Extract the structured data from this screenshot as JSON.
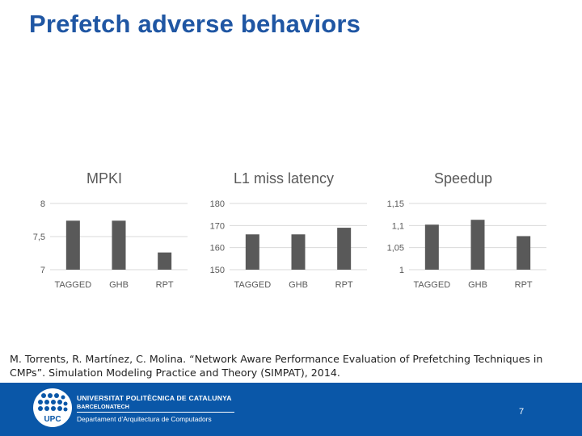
{
  "slide": {
    "title": "Prefetch adverse behaviors",
    "citation": "M. Torrents, R. Martínez, C. Molina. “Network Aware Performance Evaluation of Prefetching Techniques in CMPs”. Simulation Modeling Practice and Theory (SIMPAT), 2014.",
    "page_number": "7"
  },
  "footer": {
    "university": "UNIVERSITAT POLITÈCNICA DE CATALUNYA",
    "campus": "BARCELONATECH",
    "department": "Departament d’Arquitectura de Computadors",
    "logo_text": "UPC",
    "background_color": "#0a57a8"
  },
  "chart_data": [
    {
      "type": "bar",
      "title": "MPKI",
      "categories": [
        "TAGGED",
        "GHB",
        "RPT"
      ],
      "values": [
        7.74,
        7.74,
        7.26
      ],
      "ylim": [
        7,
        8
      ],
      "yticks": [
        7,
        7.5,
        8
      ],
      "ytick_labels": [
        "7",
        "7,5",
        "8"
      ],
      "grid": true,
      "bar_color": "#595959"
    },
    {
      "type": "bar",
      "title": "L1 miss latency",
      "categories": [
        "TAGGED",
        "GHB",
        "RPT"
      ],
      "values": [
        166,
        166,
        169
      ],
      "ylim": [
        150,
        180
      ],
      "yticks": [
        150,
        160,
        170,
        180
      ],
      "ytick_labels": [
        "150",
        "160",
        "170",
        "180"
      ],
      "grid": true,
      "bar_color": "#595959"
    },
    {
      "type": "bar",
      "title": "Speedup",
      "categories": [
        "TAGGED",
        "GHB",
        "RPT"
      ],
      "values": [
        1.102,
        1.113,
        1.076
      ],
      "ylim": [
        1,
        1.15
      ],
      "yticks": [
        1,
        1.05,
        1.1,
        1.15
      ],
      "ytick_labels": [
        "1",
        "1,05",
        "1,1",
        "1,15"
      ],
      "grid": true,
      "bar_color": "#595959"
    }
  ]
}
